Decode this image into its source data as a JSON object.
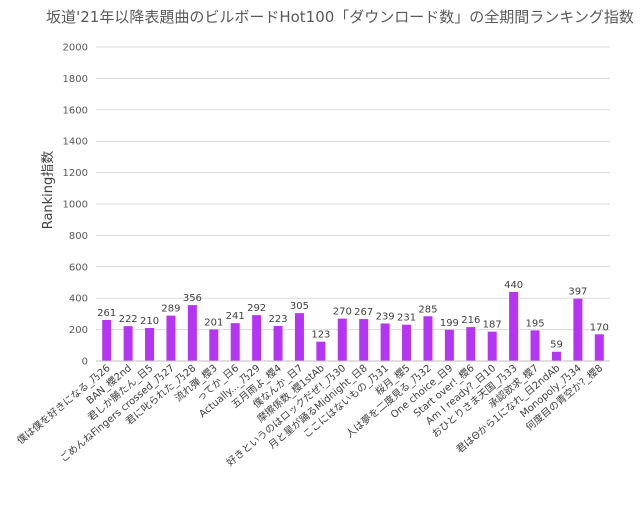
{
  "chart_data": {
    "type": "bar",
    "title": "坂道'21年以降表題曲のビルボードHot100「ダウンロード数」の全期間ランキング指数",
    "xlabel": "",
    "ylabel": "Ranking指数",
    "ylim": [
      0,
      2000
    ],
    "yticks": [
      0,
      200,
      400,
      600,
      800,
      1000,
      1200,
      1400,
      1600,
      1800,
      2000
    ],
    "grid": true,
    "legend": "none",
    "bar_color": "#b535f2",
    "categories": [
      "僕は僕を好きになる_乃26",
      "BAN_櫻2nd",
      "君しか勝たん_日5",
      "ごめんねFingers crossed_乃27",
      "君に叱られた_乃28",
      "流れ弾_櫻3",
      "ってか_日6",
      "Actually..._乃29",
      "五月雨よ_櫻4",
      "僕なんか_日7",
      "摩擦係数_櫻1stAb",
      "好きというのはロックだぜ!_乃30",
      "月と星が踊るMidnight_日8",
      "ここにはないもの_乃31",
      "桜月_櫻5",
      "人は夢を二度見る_乃32",
      "One choice_日9",
      "Start over!_櫻6",
      "Am I ready?_日10",
      "おひとりさま天国_乃33",
      "承認欲求_櫻7",
      "君はΘから1になれ_日2ndAb",
      "Monopoly_乃34",
      "何度目の青空か?_櫻8"
    ],
    "values": [
      261,
      222,
      210,
      289,
      356,
      201,
      241,
      292,
      223,
      305,
      123,
      270,
      267,
      239,
      231,
      285,
      199,
      216,
      187,
      440,
      195,
      59,
      397,
      170
    ]
  }
}
